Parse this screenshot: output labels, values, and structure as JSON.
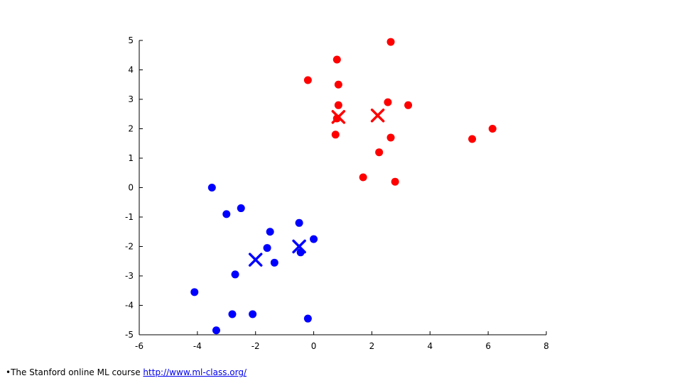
{
  "chart_data": {
    "type": "scatter",
    "xlim": [
      -6,
      8
    ],
    "ylim": [
      -5,
      5
    ],
    "xticks": [
      "-6",
      "-4",
      "-2",
      "0",
      "2",
      "4",
      "6",
      "8"
    ],
    "yticks": [
      "5",
      "4",
      "3",
      "2",
      "1",
      "0",
      "-1",
      "-2",
      "-3",
      "-4",
      "-5"
    ],
    "grid": false,
    "series": [
      {
        "marker": "circle",
        "color": "#ff0000",
        "points": [
          [
            2.65,
            4.95
          ],
          [
            0.8,
            4.35
          ],
          [
            -0.2,
            3.65
          ],
          [
            0.85,
            3.5
          ],
          [
            2.55,
            2.9
          ],
          [
            3.25,
            2.8
          ],
          [
            0.85,
            2.8
          ],
          [
            0.8,
            2.35
          ],
          [
            0.75,
            1.8
          ],
          [
            2.65,
            1.7
          ],
          [
            6.15,
            2.0
          ],
          [
            5.45,
            1.65
          ],
          [
            2.25,
            1.2
          ],
          [
            1.7,
            0.35
          ],
          [
            2.8,
            0.2
          ]
        ]
      },
      {
        "marker": "circle",
        "color": "#0000ff",
        "points": [
          [
            -3.5,
            0.0
          ],
          [
            -3.0,
            -0.9
          ],
          [
            -2.5,
            -0.7
          ],
          [
            -1.5,
            -1.5
          ],
          [
            -0.5,
            -1.2
          ],
          [
            0.0,
            -1.75
          ],
          [
            -1.6,
            -2.05
          ],
          [
            -0.45,
            -2.2
          ],
          [
            -1.35,
            -2.55
          ],
          [
            -2.7,
            -2.95
          ],
          [
            -4.1,
            -3.55
          ],
          [
            -2.8,
            -4.3
          ],
          [
            -2.1,
            -4.3
          ],
          [
            -0.2,
            -4.45
          ],
          [
            -3.35,
            -4.85
          ]
        ]
      },
      {
        "marker": "x",
        "color": "#ff0000",
        "points": [
          [
            0.85,
            2.4
          ],
          [
            2.2,
            2.45
          ]
        ]
      },
      {
        "marker": "x",
        "color": "#0000ff",
        "points": [
          [
            -2.0,
            -2.45
          ],
          [
            -0.5,
            -2.0
          ]
        ]
      }
    ]
  },
  "footer": {
    "bullet": "•",
    "text": "The Stanford online ML course ",
    "link": "http://www.ml-class.org/"
  }
}
